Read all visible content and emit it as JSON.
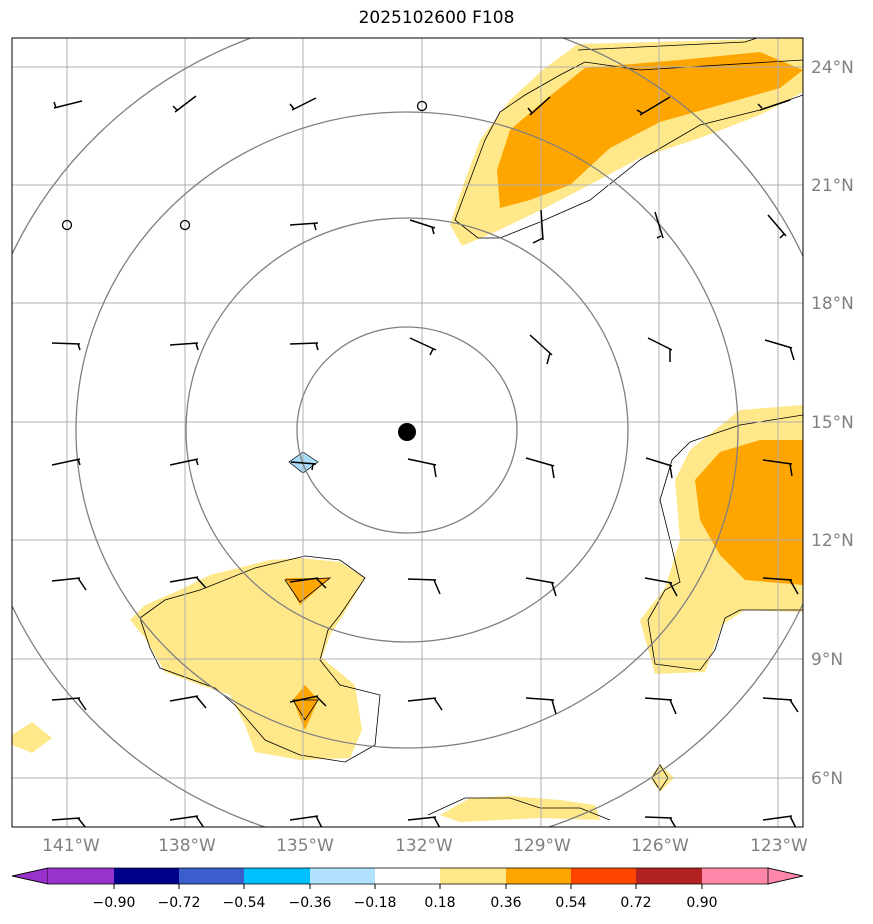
{
  "title": "2025102600 F108",
  "map": {
    "lon_range": [
      -142,
      -122.5
    ],
    "lat_range": [
      5,
      25
    ],
    "lon_ticks": [
      -141,
      -138,
      -135,
      -132,
      -129,
      -126,
      -123
    ],
    "lon_tick_labels": [
      "141°W",
      "138°W",
      "135°W",
      "132°W",
      "129°W",
      "126°W",
      "123°W"
    ],
    "lat_ticks": [
      6,
      9,
      12,
      15,
      18,
      21,
      24
    ],
    "lat_tick_labels": [
      "6°N",
      "9°N",
      "12°N",
      "15°N",
      "18°N",
      "21°N",
      "24°N"
    ],
    "grid": true,
    "center_marker": {
      "lon": -132.4,
      "lat": 14.75
    },
    "range_rings_deg": [
      3,
      5.5,
      8.3,
      10.9
    ],
    "colors": {
      "light_yellow": "#ffe88a",
      "orange": "#ffa500",
      "light_blue": "#aadcf7",
      "grid": "#b0b0b0",
      "ring": "#808080"
    }
  },
  "colorbar": {
    "levels": [
      "−0.90",
      "−0.72",
      "−0.54",
      "−0.36",
      "−0.18",
      "0.18",
      "0.36",
      "0.54",
      "0.72",
      "0.90"
    ],
    "colors": [
      "#9932cc",
      "#00008b",
      "#3a5fcd",
      "#00bfff",
      "#b0e2ff",
      "#ffffff",
      "#ffe88a",
      "#ffa500",
      "#ff4500",
      "#b22222",
      "#ff88aa"
    ]
  }
}
